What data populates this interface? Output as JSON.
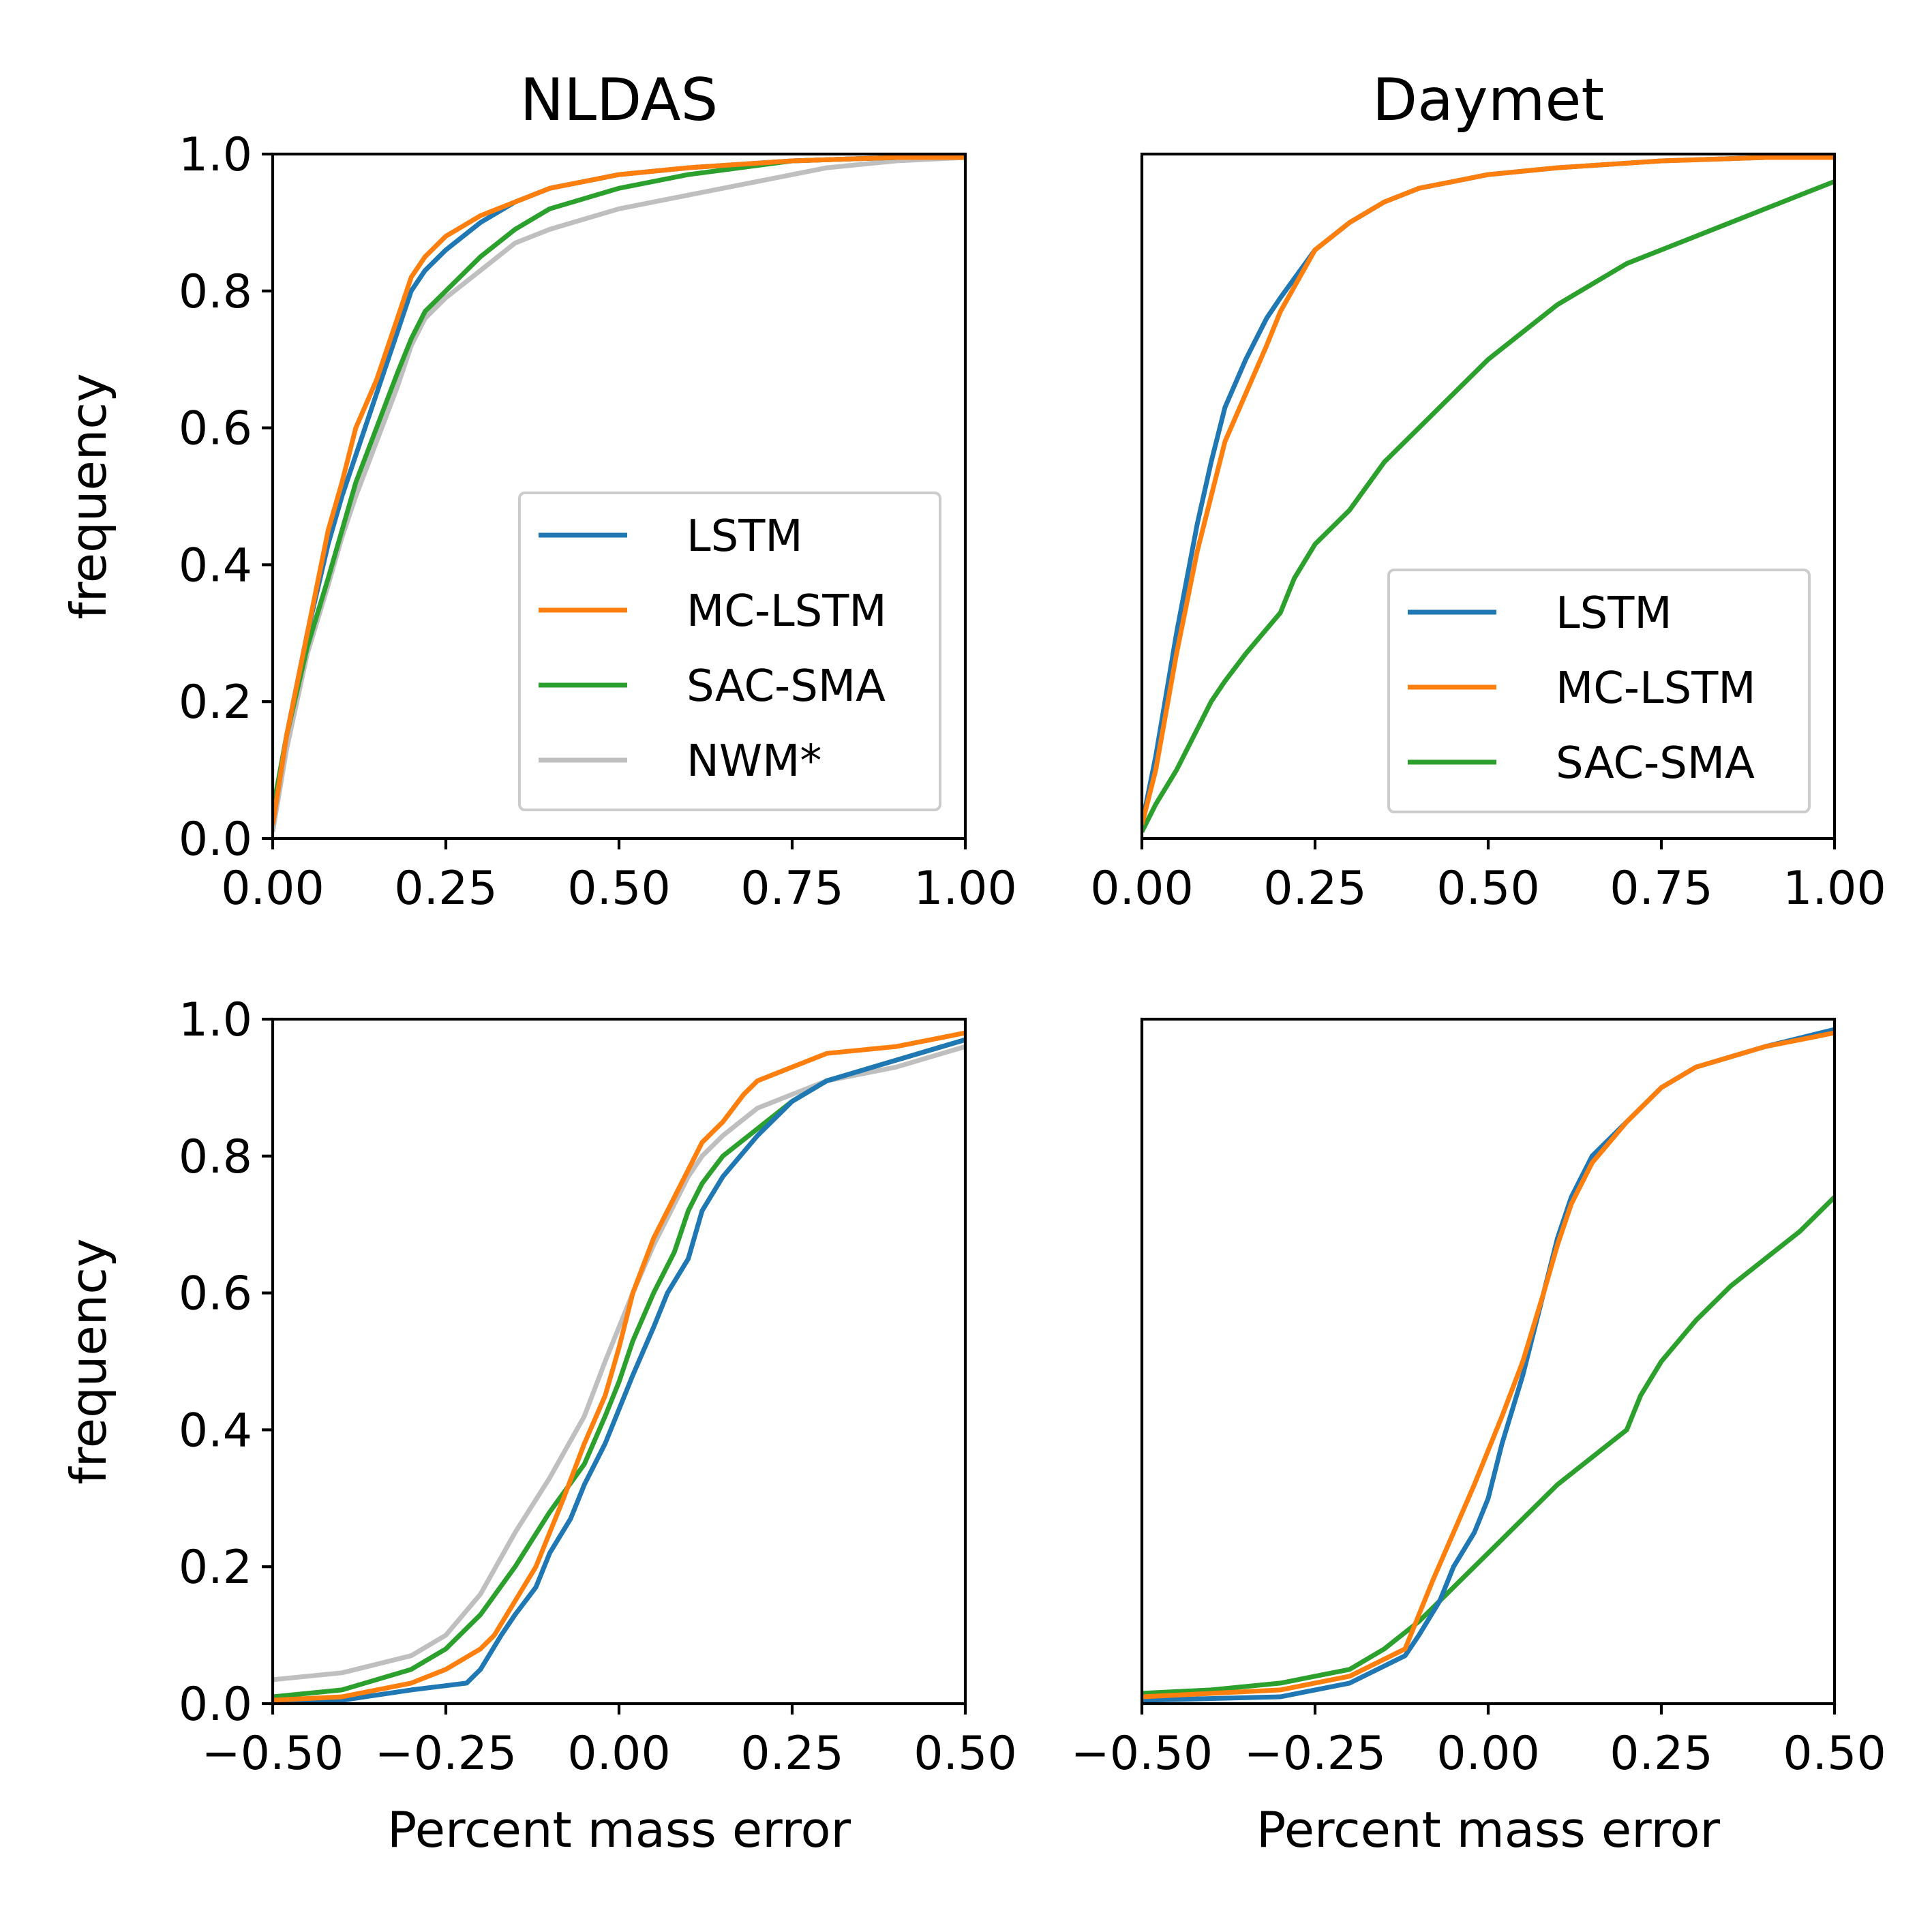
{
  "figure": {
    "column_titles": [
      "NLDAS",
      "Daymet"
    ]
  },
  "colors": {
    "LSTM": "#1f77b4",
    "MC-LSTM": "#ff7f0e",
    "SAC-SMA": "#2ca02c",
    "NWM*": "#bfbfbf"
  },
  "chart_data": [
    {
      "type": "line",
      "title": "NLDAS",
      "xlabel": "",
      "ylabel": "frequency",
      "xlim": [
        0,
        1
      ],
      "ylim": [
        0,
        1
      ],
      "xticks": [
        "0.00",
        "0.25",
        "0.50",
        "0.75",
        "1.00"
      ],
      "yticks": [
        "0.0",
        "0.2",
        "0.4",
        "0.6",
        "0.8",
        "1.0"
      ],
      "legend": {
        "position": "center-right",
        "entries": [
          "LSTM",
          "MC-LSTM",
          "SAC-SMA",
          "NWM*"
        ]
      },
      "series": [
        {
          "name": "LSTM",
          "x": [
            0,
            0.02,
            0.05,
            0.08,
            0.1,
            0.12,
            0.15,
            0.18,
            0.2,
            0.22,
            0.25,
            0.3,
            0.35,
            0.4,
            0.5,
            0.6,
            0.75,
            0.9,
            1.0
          ],
          "y": [
            0.02,
            0.15,
            0.3,
            0.43,
            0.5,
            0.56,
            0.65,
            0.74,
            0.8,
            0.83,
            0.86,
            0.9,
            0.93,
            0.95,
            0.97,
            0.98,
            0.99,
            0.995,
            0.995
          ]
        },
        {
          "name": "MC-LSTM",
          "x": [
            0,
            0.02,
            0.05,
            0.08,
            0.1,
            0.12,
            0.15,
            0.18,
            0.2,
            0.22,
            0.25,
            0.3,
            0.35,
            0.4,
            0.5,
            0.6,
            0.75,
            0.9,
            1.0
          ],
          "y": [
            0.02,
            0.15,
            0.3,
            0.45,
            0.52,
            0.6,
            0.67,
            0.76,
            0.82,
            0.85,
            0.88,
            0.91,
            0.93,
            0.95,
            0.97,
            0.98,
            0.99,
            0.995,
            0.995
          ]
        },
        {
          "name": "SAC-SMA",
          "x": [
            0,
            0.02,
            0.05,
            0.08,
            0.1,
            0.12,
            0.15,
            0.18,
            0.2,
            0.22,
            0.25,
            0.3,
            0.35,
            0.4,
            0.5,
            0.6,
            0.75,
            0.9,
            1.0
          ],
          "y": [
            0.04,
            0.15,
            0.28,
            0.38,
            0.45,
            0.52,
            0.6,
            0.68,
            0.73,
            0.77,
            0.8,
            0.85,
            0.89,
            0.92,
            0.95,
            0.97,
            0.99,
            0.995,
            0.995
          ]
        },
        {
          "name": "NWM*",
          "x": [
            0,
            0.02,
            0.05,
            0.08,
            0.1,
            0.12,
            0.15,
            0.18,
            0.2,
            0.22,
            0.25,
            0.3,
            0.35,
            0.4,
            0.5,
            0.6,
            0.7,
            0.8,
            0.9,
            1.0
          ],
          "y": [
            0.01,
            0.13,
            0.27,
            0.37,
            0.44,
            0.5,
            0.58,
            0.66,
            0.72,
            0.76,
            0.79,
            0.83,
            0.87,
            0.89,
            0.92,
            0.94,
            0.96,
            0.98,
            0.99,
            0.995
          ]
        }
      ]
    },
    {
      "type": "line",
      "title": "Daymet",
      "xlabel": "",
      "ylabel": "",
      "xlim": [
        0,
        1
      ],
      "ylim": [
        0,
        1
      ],
      "xticks": [
        "0.00",
        "0.25",
        "0.50",
        "0.75",
        "1.00"
      ],
      "yticks": [],
      "legend": {
        "position": "lower-right",
        "entries": [
          "LSTM",
          "MC-LSTM",
          "SAC-SMA"
        ]
      },
      "series": [
        {
          "name": "LSTM",
          "x": [
            0,
            0.02,
            0.05,
            0.08,
            0.1,
            0.12,
            0.15,
            0.18,
            0.2,
            0.25,
            0.3,
            0.35,
            0.4,
            0.5,
            0.6,
            0.75,
            0.9,
            1.0
          ],
          "y": [
            0.02,
            0.12,
            0.3,
            0.46,
            0.55,
            0.63,
            0.7,
            0.76,
            0.79,
            0.86,
            0.9,
            0.93,
            0.95,
            0.97,
            0.98,
            0.99,
            0.995,
            0.995
          ]
        },
        {
          "name": "MC-LSTM",
          "x": [
            0,
            0.02,
            0.05,
            0.08,
            0.1,
            0.12,
            0.15,
            0.18,
            0.2,
            0.25,
            0.3,
            0.35,
            0.4,
            0.5,
            0.6,
            0.75,
            0.9,
            1.0
          ],
          "y": [
            0.02,
            0.1,
            0.27,
            0.42,
            0.5,
            0.58,
            0.65,
            0.72,
            0.77,
            0.86,
            0.9,
            0.93,
            0.95,
            0.97,
            0.98,
            0.99,
            0.995,
            0.995
          ]
        },
        {
          "name": "SAC-SMA",
          "x": [
            0,
            0.02,
            0.05,
            0.08,
            0.1,
            0.12,
            0.15,
            0.2,
            0.22,
            0.25,
            0.3,
            0.35,
            0.4,
            0.45,
            0.5,
            0.55,
            0.6,
            0.7,
            0.8,
            0.9,
            1.0
          ],
          "y": [
            0.01,
            0.05,
            0.1,
            0.16,
            0.2,
            0.23,
            0.27,
            0.33,
            0.38,
            0.43,
            0.48,
            0.55,
            0.6,
            0.65,
            0.7,
            0.74,
            0.78,
            0.84,
            0.88,
            0.92,
            0.96
          ]
        }
      ]
    },
    {
      "type": "line",
      "title": "",
      "xlabel": "Percent mass error",
      "ylabel": "frequency",
      "xlim": [
        -0.5,
        0.5
      ],
      "ylim": [
        0,
        1
      ],
      "xticks": [
        "−0.50",
        "−0.25",
        "0.00",
        "0.25",
        "0.50"
      ],
      "yticks": [
        "0.0",
        "0.2",
        "0.4",
        "0.6",
        "0.8",
        "1.0"
      ],
      "series": [
        {
          "name": "LSTM",
          "x": [
            -0.5,
            -0.4,
            -0.3,
            -0.22,
            -0.2,
            -0.17,
            -0.15,
            -0.12,
            -0.1,
            -0.07,
            -0.05,
            -0.02,
            0,
            0.02,
            0.05,
            0.07,
            0.1,
            0.12,
            0.15,
            0.2,
            0.25,
            0.3,
            0.4,
            0.5
          ],
          "y": [
            0,
            0.005,
            0.02,
            0.03,
            0.05,
            0.1,
            0.13,
            0.17,
            0.22,
            0.27,
            0.32,
            0.38,
            0.43,
            0.48,
            0.55,
            0.6,
            0.65,
            0.72,
            0.77,
            0.83,
            0.88,
            0.91,
            0.94,
            0.97
          ]
        },
        {
          "name": "MC-LSTM",
          "x": [
            -0.5,
            -0.4,
            -0.3,
            -0.25,
            -0.2,
            -0.18,
            -0.15,
            -0.12,
            -0.1,
            -0.08,
            -0.05,
            -0.02,
            0,
            0.02,
            0.05,
            0.08,
            0.1,
            0.12,
            0.15,
            0.18,
            0.2,
            0.25,
            0.3,
            0.4,
            0.5
          ],
          "y": [
            0.005,
            0.01,
            0.03,
            0.05,
            0.08,
            0.1,
            0.15,
            0.2,
            0.25,
            0.3,
            0.38,
            0.45,
            0.52,
            0.6,
            0.68,
            0.74,
            0.78,
            0.82,
            0.85,
            0.89,
            0.91,
            0.93,
            0.95,
            0.96,
            0.98
          ]
        },
        {
          "name": "SAC-SMA",
          "x": [
            -0.5,
            -0.4,
            -0.3,
            -0.25,
            -0.2,
            -0.15,
            -0.1,
            -0.05,
            -0.02,
            0,
            0.02,
            0.05,
            0.08,
            0.1,
            0.12,
            0.15,
            0.2,
            0.25,
            0.3,
            0.4,
            0.5
          ],
          "y": [
            0.01,
            0.02,
            0.05,
            0.08,
            0.13,
            0.2,
            0.28,
            0.35,
            0.42,
            0.47,
            0.53,
            0.6,
            0.66,
            0.72,
            0.76,
            0.8,
            0.84,
            0.88,
            0.91,
            0.94,
            0.97
          ]
        },
        {
          "name": "NWM*",
          "x": [
            -0.5,
            -0.4,
            -0.3,
            -0.25,
            -0.2,
            -0.15,
            -0.1,
            -0.05,
            -0.02,
            0,
            0.02,
            0.05,
            0.08,
            0.1,
            0.12,
            0.15,
            0.2,
            0.25,
            0.3,
            0.4,
            0.5
          ],
          "y": [
            0.035,
            0.045,
            0.07,
            0.1,
            0.16,
            0.25,
            0.33,
            0.42,
            0.5,
            0.55,
            0.6,
            0.67,
            0.73,
            0.77,
            0.8,
            0.83,
            0.87,
            0.89,
            0.91,
            0.93,
            0.96
          ]
        }
      ]
    },
    {
      "type": "line",
      "title": "",
      "xlabel": "Percent mass error",
      "ylabel": "",
      "xlim": [
        -0.5,
        0.5
      ],
      "ylim": [
        0,
        1
      ],
      "xticks": [
        "−0.50",
        "−0.25",
        "0.00",
        "0.25",
        "0.50"
      ],
      "yticks": [],
      "series": [
        {
          "name": "LSTM",
          "x": [
            -0.5,
            -0.3,
            -0.2,
            -0.12,
            -0.1,
            -0.07,
            -0.05,
            -0.02,
            0,
            0.02,
            0.05,
            0.08,
            0.1,
            0.12,
            0.15,
            0.2,
            0.25,
            0.3,
            0.4,
            0.5
          ],
          "y": [
            0.005,
            0.01,
            0.03,
            0.07,
            0.1,
            0.15,
            0.2,
            0.25,
            0.3,
            0.38,
            0.48,
            0.6,
            0.68,
            0.74,
            0.8,
            0.85,
            0.9,
            0.93,
            0.96,
            0.985
          ]
        },
        {
          "name": "MC-LSTM",
          "x": [
            -0.5,
            -0.3,
            -0.2,
            -0.12,
            -0.1,
            -0.08,
            -0.05,
            -0.02,
            0,
            0.02,
            0.05,
            0.08,
            0.1,
            0.12,
            0.15,
            0.2,
            0.25,
            0.3,
            0.4,
            0.5
          ],
          "y": [
            0.01,
            0.02,
            0.04,
            0.08,
            0.13,
            0.18,
            0.25,
            0.32,
            0.37,
            0.42,
            0.5,
            0.6,
            0.67,
            0.73,
            0.79,
            0.85,
            0.9,
            0.93,
            0.96,
            0.98
          ]
        },
        {
          "name": "SAC-SMA",
          "x": [
            -0.5,
            -0.4,
            -0.3,
            -0.2,
            -0.15,
            -0.1,
            -0.05,
            0,
            0.05,
            0.1,
            0.15,
            0.2,
            0.22,
            0.25,
            0.3,
            0.35,
            0.4,
            0.45,
            0.5
          ],
          "y": [
            0.015,
            0.02,
            0.03,
            0.05,
            0.08,
            0.12,
            0.17,
            0.22,
            0.27,
            0.32,
            0.36,
            0.4,
            0.45,
            0.5,
            0.56,
            0.61,
            0.65,
            0.69,
            0.74
          ]
        }
      ]
    }
  ]
}
